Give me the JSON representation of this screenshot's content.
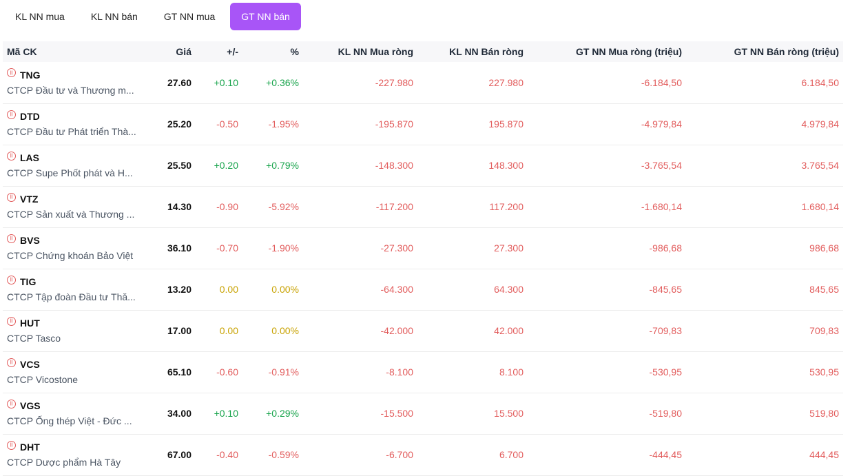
{
  "tabs": [
    {
      "label": "KL NN mua",
      "active": false
    },
    {
      "label": "KL NN bán",
      "active": false
    },
    {
      "label": "GT NN mua",
      "active": false
    },
    {
      "label": "GT NN bán",
      "active": true
    }
  ],
  "columns": [
    "Mã CK",
    "Giá",
    "+/-",
    "%",
    "KL NN Mua ròng",
    "KL NN Bán ròng",
    "GT NN Mua ròng (triệu)",
    "GT NN Bán ròng (triệu)"
  ],
  "rows": [
    {
      "code": "TNG",
      "name": "CTCP Đầu tư và Thương m...",
      "price": "27.60",
      "change": "+0.10",
      "pct": "+0.36%",
      "kl_mua": "-227.980",
      "kl_ban": "227.980",
      "gt_mua": "-6.184,50",
      "gt_ban": "6.184,50",
      "dir": "up"
    },
    {
      "code": "DTD",
      "name": "CTCP Đầu tư Phát triển Thà...",
      "price": "25.20",
      "change": "-0.50",
      "pct": "-1.95%",
      "kl_mua": "-195.870",
      "kl_ban": "195.870",
      "gt_mua": "-4.979,84",
      "gt_ban": "4.979,84",
      "dir": "down"
    },
    {
      "code": "LAS",
      "name": "CTCP Supe Phốt phát và H...",
      "price": "25.50",
      "change": "+0.20",
      "pct": "+0.79%",
      "kl_mua": "-148.300",
      "kl_ban": "148.300",
      "gt_mua": "-3.765,54",
      "gt_ban": "3.765,54",
      "dir": "up"
    },
    {
      "code": "VTZ",
      "name": "CTCP Sản xuất và Thương ...",
      "price": "14.30",
      "change": "-0.90",
      "pct": "-5.92%",
      "kl_mua": "-117.200",
      "kl_ban": "117.200",
      "gt_mua": "-1.680,14",
      "gt_ban": "1.680,14",
      "dir": "down"
    },
    {
      "code": "BVS",
      "name": "CTCP Chứng khoán Bảo Việt",
      "price": "36.10",
      "change": "-0.70",
      "pct": "-1.90%",
      "kl_mua": "-27.300",
      "kl_ban": "27.300",
      "gt_mua": "-986,68",
      "gt_ban": "986,68",
      "dir": "down"
    },
    {
      "code": "TIG",
      "name": "CTCP Tập đoàn Đầu tư Thă...",
      "price": "13.20",
      "change": "0.00",
      "pct": "0.00%",
      "kl_mua": "-64.300",
      "kl_ban": "64.300",
      "gt_mua": "-845,65",
      "gt_ban": "845,65",
      "dir": "ref"
    },
    {
      "code": "HUT",
      "name": "CTCP Tasco",
      "price": "17.00",
      "change": "0.00",
      "pct": "0.00%",
      "kl_mua": "-42.000",
      "kl_ban": "42.000",
      "gt_mua": "-709,83",
      "gt_ban": "709,83",
      "dir": "ref"
    },
    {
      "code": "VCS",
      "name": "CTCP Vicostone",
      "price": "65.10",
      "change": "-0.60",
      "pct": "-0.91%",
      "kl_mua": "-8.100",
      "kl_ban": "8.100",
      "gt_mua": "-530,95",
      "gt_ban": "530,95",
      "dir": "down"
    },
    {
      "code": "VGS",
      "name": "CTCP Ống thép Việt - Đức ...",
      "price": "34.00",
      "change": "+0.10",
      "pct": "+0.29%",
      "kl_mua": "-15.500",
      "kl_ban": "15.500",
      "gt_mua": "-519,80",
      "gt_ban": "519,80",
      "dir": "up"
    },
    {
      "code": "DHT",
      "name": "CTCP Dược phẩm Hà Tây",
      "price": "67.00",
      "change": "-0.40",
      "pct": "-0.59%",
      "kl_mua": "-6.700",
      "kl_ban": "6.700",
      "gt_mua": "-444,45",
      "gt_ban": "444,45",
      "dir": "down"
    }
  ],
  "colors": {
    "accent": "#a855f7",
    "up": "#16a34a",
    "down": "#e25c5c",
    "ref": "#c8a200"
  }
}
